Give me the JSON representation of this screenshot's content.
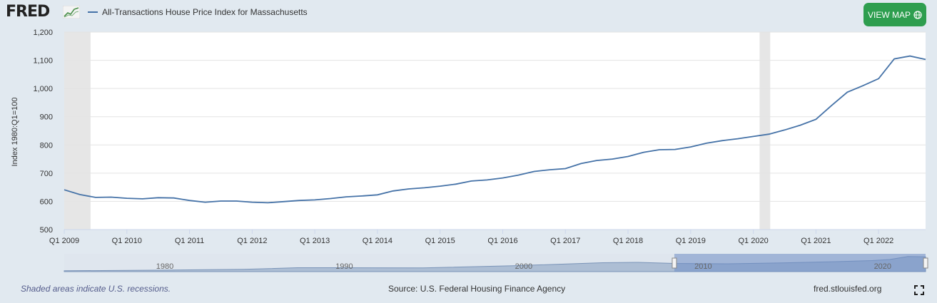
{
  "header": {
    "logo": "FRED",
    "legend_label": "All-Transactions House Price Index for Massachusetts",
    "view_map_label": "VIEW MAP",
    "line_color": "#4572a7",
    "button_color": "#2e9e4f"
  },
  "footer": {
    "recession_note": "Shaded areas indicate U.S. recessions.",
    "source": "Source: U.S. Federal Housing Finance Agency",
    "site": "fred.stlouisfed.org"
  },
  "chart_data": {
    "type": "line",
    "title": "All-Transactions House Price Index for Massachusetts",
    "ylabel": "Index 1980:Q1=100",
    "xlabel": "",
    "ylim": [
      500,
      1200
    ],
    "yticks": [
      "500",
      "600",
      "700",
      "800",
      "900",
      "1,000",
      "1,100",
      "1,200"
    ],
    "yvalues": [
      500,
      600,
      700,
      800,
      900,
      1000,
      1100,
      1200
    ],
    "xticks": [
      "Q1 2009",
      "Q1 2010",
      "Q1 2011",
      "Q1 2012",
      "Q1 2013",
      "Q1 2014",
      "Q1 2015",
      "Q1 2016",
      "Q1 2017",
      "Q1 2018",
      "Q1 2019",
      "Q1 2020",
      "Q1 2021",
      "Q1 2022"
    ],
    "xtick_years": [
      2009,
      2010,
      2011,
      2012,
      2013,
      2014,
      2015,
      2016,
      2017,
      2018,
      2019,
      2020,
      2021,
      2022
    ],
    "xlim": [
      2009.0,
      2022.75
    ],
    "recessions": [
      [
        2009.0,
        2009.42
      ],
      [
        2020.1,
        2020.27
      ]
    ],
    "series": [
      {
        "name": "All-Transactions House Price Index for Massachusetts",
        "x": [
          2009.0,
          2009.25,
          2009.5,
          2009.75,
          2010.0,
          2010.25,
          2010.5,
          2010.75,
          2011.0,
          2011.25,
          2011.5,
          2011.75,
          2012.0,
          2012.25,
          2012.5,
          2012.75,
          2013.0,
          2013.25,
          2013.5,
          2013.75,
          2014.0,
          2014.25,
          2014.5,
          2014.75,
          2015.0,
          2015.25,
          2015.5,
          2015.75,
          2016.0,
          2016.25,
          2016.5,
          2016.75,
          2017.0,
          2017.25,
          2017.5,
          2017.75,
          2018.0,
          2018.25,
          2018.5,
          2018.75,
          2019.0,
          2019.25,
          2019.5,
          2019.75,
          2020.0,
          2020.25,
          2020.5,
          2020.75,
          2021.0,
          2021.25,
          2021.5,
          2021.75,
          2022.0,
          2022.25,
          2022.5,
          2022.75
        ],
        "values": [
          641,
          624,
          614,
          615,
          611,
          609,
          613,
          612,
          603,
          597,
          601,
          601,
          597,
          595,
          599,
          603,
          605,
          610,
          616,
          619,
          623,
          637,
          644,
          648,
          654,
          661,
          672,
          676,
          683,
          693,
          706,
          712,
          716,
          734,
          745,
          750,
          759,
          774,
          783,
          784,
          793,
          806,
          815,
          822,
          830,
          838,
          853,
          870,
          891,
          940,
          987,
          1010,
          1035,
          1105,
          1115,
          1103
        ]
      }
    ],
    "navigator": {
      "labels": [
        "1980",
        "1990",
        "2000",
        "2010",
        "2020"
      ],
      "years": [
        1980,
        1990,
        2000,
        2010,
        2020
      ],
      "range_years": [
        1975,
        2023
      ],
      "selected": [
        2009.0,
        2022.75
      ]
    }
  }
}
